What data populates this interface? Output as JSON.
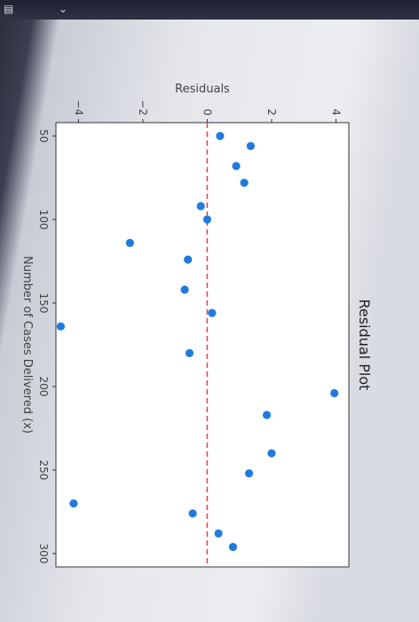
{
  "chart_data": {
    "type": "scatter",
    "title": "Residual Plot",
    "xlabel": "Number of Cases Delivered (x)",
    "ylabel": "Residuals",
    "xlim": [
      42,
      308
    ],
    "ylim": [
      -4.7,
      4.4
    ],
    "x_ticks": [
      50,
      100,
      150,
      200,
      250,
      300
    ],
    "y_ticks": [
      4,
      2,
      0,
      -2,
      -4
    ],
    "y_tick_labels": [
      "4",
      "2",
      "0",
      "−2",
      "−4"
    ],
    "grid": false,
    "reference_line": {
      "y": 0,
      "color": "#e8454f",
      "style": "dashed"
    },
    "marker_color": "#1f7be0",
    "points": [
      {
        "x": 50,
        "y": 0.4
      },
      {
        "x": 56,
        "y": 1.35
      },
      {
        "x": 68,
        "y": 0.9
      },
      {
        "x": 78,
        "y": 1.15
      },
      {
        "x": 92,
        "y": -0.2
      },
      {
        "x": 100,
        "y": 0.0
      },
      {
        "x": 114,
        "y": -2.4
      },
      {
        "x": 124,
        "y": -0.6
      },
      {
        "x": 142,
        "y": -0.7
      },
      {
        "x": 156,
        "y": 0.15
      },
      {
        "x": 164,
        "y": -4.9
      },
      {
        "x": 180,
        "y": -0.55
      },
      {
        "x": 204,
        "y": 3.95
      },
      {
        "x": 217,
        "y": 1.85
      },
      {
        "x": 240,
        "y": 2.0
      },
      {
        "x": 252,
        "y": 1.3
      },
      {
        "x": 270,
        "y": -4.15
      },
      {
        "x": 276,
        "y": -0.45
      },
      {
        "x": 288,
        "y": 0.35
      },
      {
        "x": 296,
        "y": 0.8
      }
    ]
  },
  "topbar": {
    "left_icon": "menu-icon",
    "right_icon": "chevron-down-icon"
  }
}
